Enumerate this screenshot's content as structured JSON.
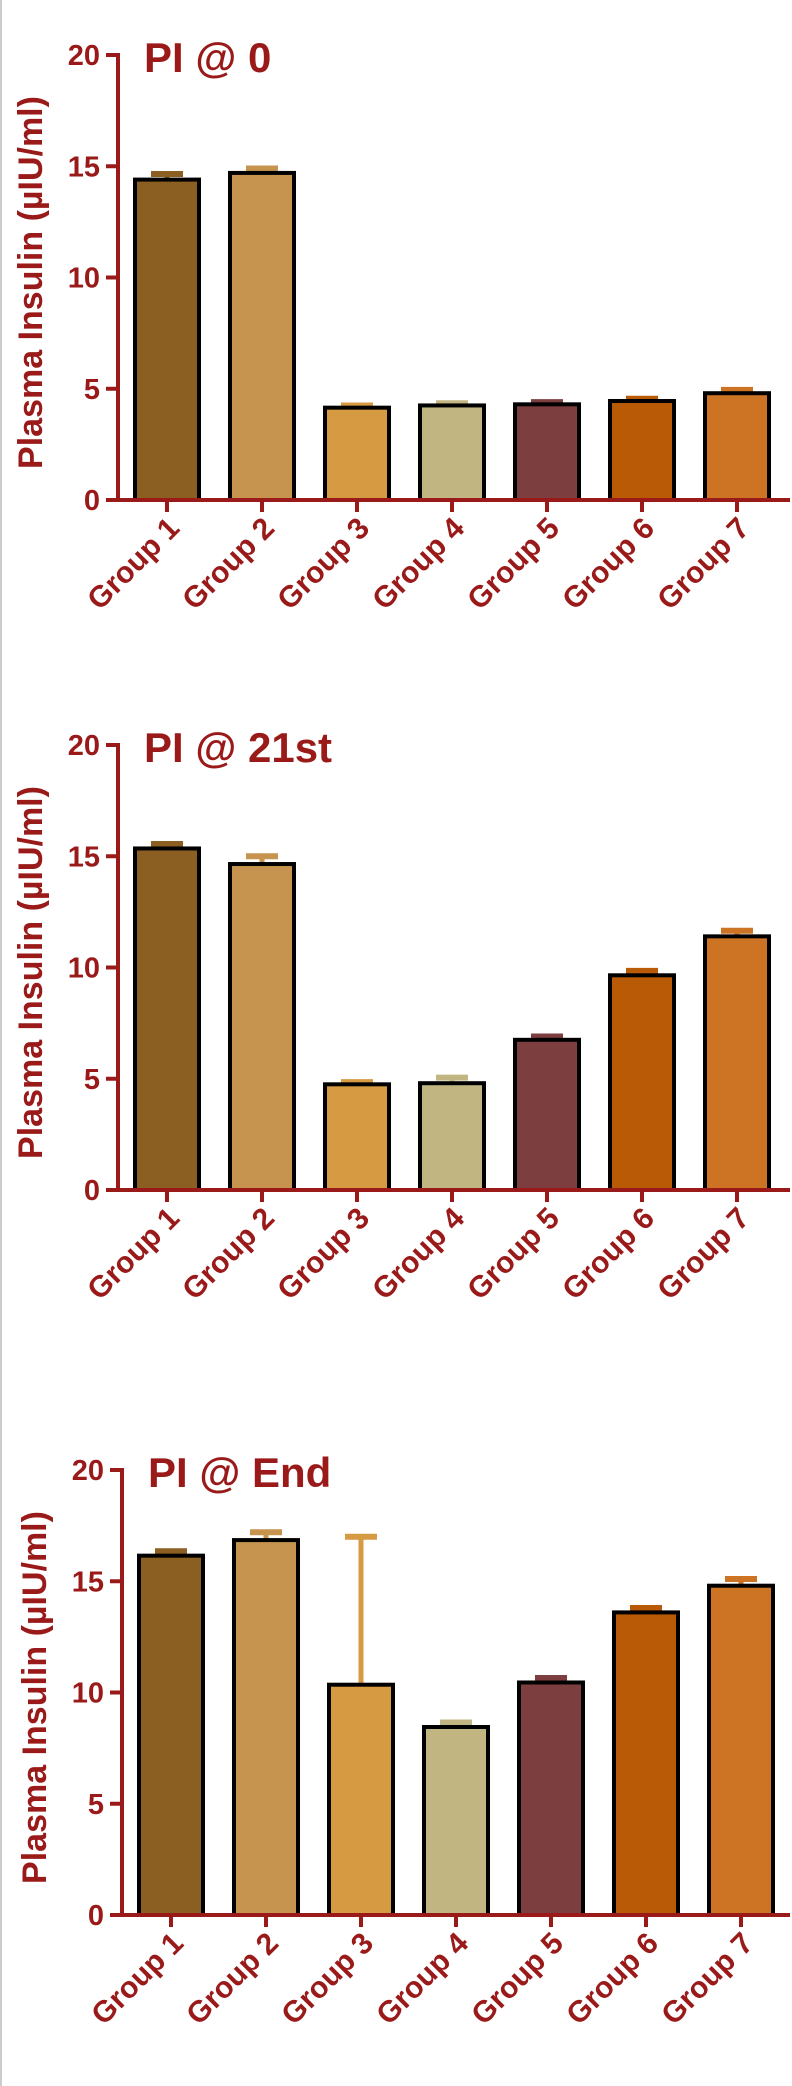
{
  "colors": {
    "axis": "#9a1a1a",
    "text": "#9a1a1a",
    "bar_outline": "#000000",
    "groups": [
      "#8b5e22",
      "#c6944f",
      "#d69a43",
      "#c1b681",
      "#7d3e40",
      "#b95b06",
      "#cc7423"
    ]
  },
  "chart_data": [
    {
      "type": "bar",
      "title": "PI @ 0",
      "ylabel": "Plasma  Insulin (µIU/ml)",
      "xlabel": "",
      "ylim": [
        0,
        20
      ],
      "yticks": [
        0,
        5,
        10,
        15,
        20
      ],
      "categories": [
        "Group 1",
        "Group 2",
        "Group 3",
        "Group 4",
        "Group 5",
        "Group 6",
        "Group 7"
      ],
      "values": [
        14.4,
        14.7,
        4.15,
        4.25,
        4.3,
        4.45,
        4.8
      ],
      "errors": [
        0.25,
        0.2,
        0.1,
        0.1,
        0.1,
        0.1,
        0.15
      ]
    },
    {
      "type": "bar",
      "title": "PI @ 21st",
      "ylabel": "Plasma  Insulin (µIU/ml)",
      "xlabel": "",
      "ylim": [
        0,
        20
      ],
      "yticks": [
        0,
        5,
        10,
        15,
        20
      ],
      "categories": [
        "Group 1",
        "Group 2",
        "Group 3",
        "Group 4",
        "Group 5",
        "Group 6",
        "Group 7"
      ],
      "values": [
        15.35,
        14.65,
        4.75,
        4.8,
        6.75,
        9.65,
        11.4
      ],
      "errors": [
        0.2,
        0.35,
        0.1,
        0.25,
        0.15,
        0.2,
        0.25
      ]
    },
    {
      "type": "bar",
      "title": "PI @ End",
      "ylabel": "Plasma  Insulin (µIU/ml)",
      "xlabel": "",
      "ylim": [
        0,
        20
      ],
      "yticks": [
        0,
        5,
        10,
        15,
        20
      ],
      "categories": [
        "Group 1",
        "Group 2",
        "Group 3",
        "Group 4",
        "Group 5",
        "Group 6",
        "Group 7"
      ],
      "values": [
        16.15,
        16.85,
        10.35,
        8.45,
        10.45,
        13.6,
        14.8
      ],
      "errors": [
        0.2,
        0.35,
        6.65,
        0.2,
        0.2,
        0.2,
        0.3
      ]
    }
  ]
}
